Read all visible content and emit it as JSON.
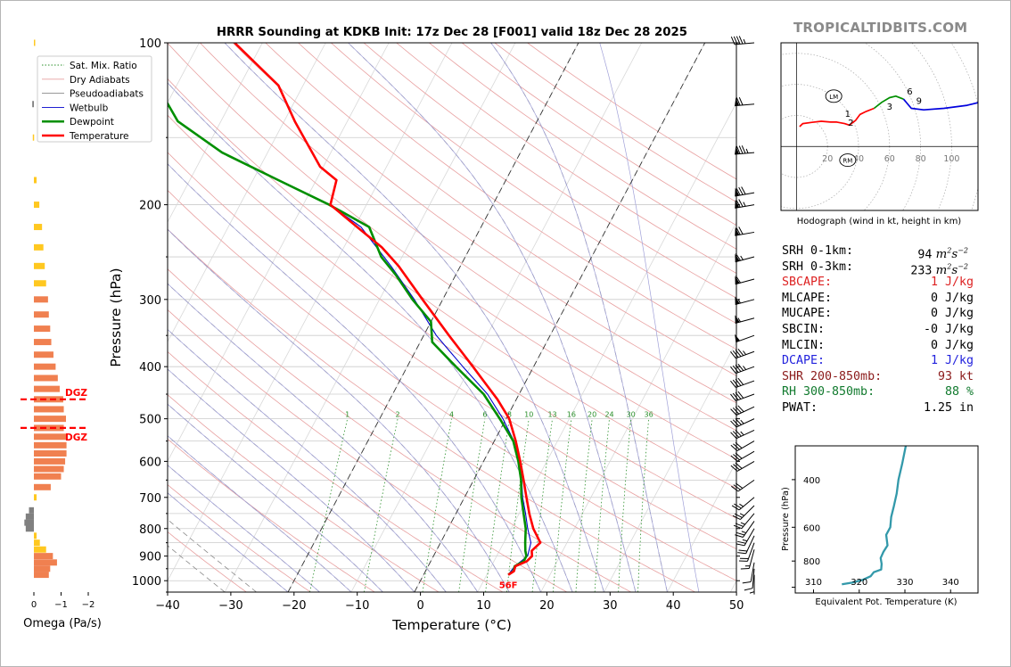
{
  "title": "HRRR Sounding at KDKB Init: 17z Dec 28 [F001] valid 18z Dec 28 2025",
  "brand": "TROPICALTIDBITS.COM",
  "colors": {
    "temperature": "#ff0000",
    "dewpoint": "#008f00",
    "wetbulb": "#0000cc",
    "dry_adiabat": "#e8a0a0",
    "moist_adiabat": "#8a8a8a",
    "mixing_ratio": "#2a8f2a",
    "isotherm": "#a0a0d8",
    "theta_e": "#3399aa",
    "omega_pos": "#f08050",
    "omega_neg": "#808080",
    "omega_weak": "#ffc820",
    "dgz": "#ff0000",
    "brand": "#8a8a8a"
  },
  "chart_data": [
    {
      "id": "skewt",
      "type": "line",
      "title": "HRRR Sounding at KDKB Init: 17z Dec 28 [F001] valid 18z Dec 28 2025",
      "xlabel": "Temperature (°C)",
      "ylabel": "Pressure (hPa)",
      "xlim": [
        -40,
        50
      ],
      "ylim": [
        1050,
        100
      ],
      "y_scale": "log",
      "skew": "skew-T log-P diagram",
      "x_ticks": [
        "−40",
        "−30",
        "−20",
        "−10",
        "0",
        "10",
        "20",
        "30",
        "40",
        "50"
      ],
      "y_ticks": [
        "100",
        "200",
        "300",
        "400",
        "500",
        "600",
        "700",
        "800",
        "900",
        "1000"
      ],
      "legend": {
        "position": "top-left",
        "entries": [
          "Sat. Mix. Ratio",
          "Dry Adiabats",
          "Pseudoadiabats",
          "Wetbulb",
          "Dewpoint",
          "Temperature"
        ]
      },
      "mixing_ratio_labels": [
        "1",
        "2",
        "4",
        "6",
        "8",
        "10",
        "13",
        "16",
        "20",
        "24",
        "30",
        "36"
      ],
      "surface_label": "56F",
      "series": [
        {
          "name": "Temperature",
          "points": [
            [
              975,
              13.4
            ],
            [
              960,
              14.0
            ],
            [
              940,
              13.8
            ],
            [
              920,
              15.2
            ],
            [
              900,
              15.6
            ],
            [
              880,
              15.1
            ],
            [
              850,
              15.8
            ],
            [
              800,
              13.5
            ],
            [
              750,
              11.6
            ],
            [
              700,
              9.8
            ],
            [
              650,
              7.9
            ],
            [
              600,
              5.8
            ],
            [
              550,
              3.4
            ],
            [
              500,
              0.5
            ],
            [
              460,
              -3.0
            ],
            [
              430,
              -6.2
            ],
            [
              400,
              -9.6
            ],
            [
              350,
              -16.0
            ],
            [
              300,
              -23.2
            ],
            [
              260,
              -29.8
            ],
            [
              240,
              -34.0
            ],
            [
              220,
              -39.6
            ],
            [
              200,
              -45.7
            ],
            [
              180,
              -46.8
            ],
            [
              170,
              -50.5
            ],
            [
              140,
              -58.3
            ],
            [
              120,
              -63.9
            ],
            [
              100,
              -74.4
            ]
          ]
        },
        {
          "name": "Dewpoint",
          "points": [
            [
              975,
              13.4
            ],
            [
              960,
              13.9
            ],
            [
              940,
              13.7
            ],
            [
              920,
              14.7
            ],
            [
              900,
              14.7
            ],
            [
              880,
              14.1
            ],
            [
              850,
              13.4
            ],
            [
              800,
              12.3
            ],
            [
              750,
              10.7
            ],
            [
              700,
              9.0
            ],
            [
              650,
              7.5
            ],
            [
              600,
              5.5
            ],
            [
              550,
              3.0
            ],
            [
              500,
              -1.0
            ],
            [
              450,
              -5.6
            ],
            [
              400,
              -12.3
            ],
            [
              360,
              -18.1
            ],
            [
              330,
              -20.0
            ],
            [
              300,
              -24.8
            ],
            [
              270,
              -29.5
            ],
            [
              250,
              -33.3
            ],
            [
              220,
              -37.7
            ],
            [
              200,
              -45.9
            ],
            [
              180,
              -56.0
            ],
            [
              160,
              -67.2
            ],
            [
              140,
              -76.8
            ],
            [
              120,
              -83.1
            ],
            [
              100,
              -86.7
            ]
          ]
        },
        {
          "name": "Wetbulb",
          "points": [
            [
              975,
              13.4
            ],
            [
              940,
              13.7
            ],
            [
              900,
              14.9
            ],
            [
              850,
              14.3
            ],
            [
              800,
              12.6
            ],
            [
              750,
              11.0
            ],
            [
              700,
              9.2
            ],
            [
              650,
              7.6
            ],
            [
              600,
              5.6
            ],
            [
              550,
              3.1
            ],
            [
              500,
              -0.5
            ],
            [
              450,
              -5.0
            ],
            [
              400,
              -11.2
            ],
            [
              350,
              -18.0
            ],
            [
              300,
              -24.5
            ],
            [
              260,
              -31.0
            ],
            [
              220,
              -39.0
            ],
            [
              200,
              -45.8
            ]
          ]
        }
      ]
    },
    {
      "id": "omega",
      "type": "bar",
      "xlabel": "Omega (Pa/s)",
      "x_ticks": [
        "0",
        "−1",
        "−2"
      ],
      "xlim": [
        0,
        -2
      ],
      "dgz_label": "DGZ",
      "dgz_levels": [
        460,
        520
      ],
      "bars": [
        [
          975,
          -0.55
        ],
        [
          950,
          -0.6
        ],
        [
          925,
          -0.85
        ],
        [
          900,
          -0.7
        ],
        [
          875,
          -0.45
        ],
        [
          850,
          -0.22
        ],
        [
          825,
          -0.1
        ],
        [
          800,
          0.3
        ],
        [
          780,
          0.35
        ],
        [
          760,
          0.3
        ],
        [
          740,
          0.18
        ],
        [
          700,
          -0.1
        ],
        [
          670,
          -0.62
        ],
        [
          640,
          -1.0
        ],
        [
          620,
          -1.1
        ],
        [
          600,
          -1.15
        ],
        [
          580,
          -1.2
        ],
        [
          560,
          -1.2
        ],
        [
          540,
          -1.18
        ],
        [
          520,
          -1.1
        ],
        [
          500,
          -1.18
        ],
        [
          480,
          -1.1
        ],
        [
          460,
          -1.08
        ],
        [
          440,
          -0.95
        ],
        [
          420,
          -0.88
        ],
        [
          400,
          -0.8
        ],
        [
          380,
          -0.72
        ],
        [
          360,
          -0.64
        ],
        [
          340,
          -0.6
        ],
        [
          320,
          -0.55
        ],
        [
          300,
          -0.52
        ],
        [
          280,
          -0.45
        ],
        [
          260,
          -0.4
        ],
        [
          240,
          -0.35
        ],
        [
          220,
          -0.3
        ],
        [
          200,
          -0.2
        ],
        [
          180,
          -0.1
        ],
        [
          150,
          0.04
        ],
        [
          130,
          0.06
        ],
        [
          100,
          -0.02
        ]
      ]
    },
    {
      "id": "hodograph",
      "type": "line",
      "title": "Hodograph (wind in kt, height in km)",
      "x_ticks": [
        "20",
        "40",
        "60",
        "80",
        "100"
      ],
      "xlim": [
        -10,
        117
      ],
      "ylim": [
        -42,
        68
      ],
      "annotations": [
        "LM",
        "RM",
        "1",
        "2",
        "3",
        "6",
        "9"
      ],
      "storm_motion": {
        "LM": [
          24,
          33
        ],
        "RM": [
          33,
          -9
        ]
      },
      "series": [
        {
          "name": "0-3 km",
          "color": "#ff0000",
          "points": [
            [
              2,
              13
            ],
            [
              4,
              15
            ],
            [
              10,
              15.8
            ],
            [
              16,
              16.5
            ],
            [
              22,
              16
            ],
            [
              26,
              16
            ],
            [
              31,
              15
            ],
            [
              34,
              14
            ],
            [
              38,
              17
            ],
            [
              41,
              21
            ],
            [
              45,
              23
            ],
            [
              50,
              25
            ]
          ]
        },
        {
          "name": "3-6 km",
          "color": "#008f00",
          "points": [
            [
              50,
              25
            ],
            [
              55,
              29
            ],
            [
              60,
              32
            ],
            [
              64,
              33
            ],
            [
              69,
              31
            ]
          ]
        },
        {
          "name": "6-12 km",
          "color": "#0000dd",
          "points": [
            [
              69,
              31
            ],
            [
              74,
              25
            ],
            [
              82,
              24
            ],
            [
              95,
              25
            ],
            [
              110,
              27
            ],
            [
              122,
              30
            ]
          ]
        }
      ]
    },
    {
      "id": "theta_e",
      "type": "line",
      "xlabel": "Equivalent Pot. Temperature (K)",
      "ylabel": "Pressure (hPa)",
      "xlim": [
        306,
        346
      ],
      "ylim": [
        1050,
        300
      ],
      "x_ticks": [
        "310",
        "320",
        "330",
        "340"
      ],
      "y_ticks": [
        "400",
        "600",
        "800"
      ],
      "series": [
        {
          "name": "Equivalent Pot. Temperature",
          "points": [
            [
              975,
              316.2
            ],
            [
              960,
              318.6
            ],
            [
              940,
              320.7
            ],
            [
              910,
              322.5
            ],
            [
              880,
              323.2
            ],
            [
              860,
              324.8
            ],
            [
              820,
              324.9
            ],
            [
              780,
              324.7
            ],
            [
              740,
              325.3
            ],
            [
              700,
              326.2
            ],
            [
              640,
              325.9
            ],
            [
              600,
              326.8
            ],
            [
              550,
              327.0
            ],
            [
              500,
              327.6
            ],
            [
              450,
              328.2
            ],
            [
              400,
              328.6
            ],
            [
              350,
              329.4
            ],
            [
              300,
              330.2
            ]
          ]
        }
      ]
    }
  ],
  "wind_barbs": [
    {
      "p": 100,
      "speed": 45,
      "dir": 265
    },
    {
      "p": 130,
      "speed": 70,
      "dir": 265
    },
    {
      "p": 160,
      "speed": 85,
      "dir": 265
    },
    {
      "p": 190,
      "speed": 80,
      "dir": 260
    },
    {
      "p": 200,
      "speed": 75,
      "dir": 260
    },
    {
      "p": 225,
      "speed": 70,
      "dir": 260
    },
    {
      "p": 250,
      "speed": 65,
      "dir": 255
    },
    {
      "p": 275,
      "speed": 60,
      "dir": 255
    },
    {
      "p": 300,
      "speed": 55,
      "dir": 255
    },
    {
      "p": 325,
      "speed": 55,
      "dir": 255
    },
    {
      "p": 350,
      "speed": 50,
      "dir": 250
    },
    {
      "p": 375,
      "speed": 45,
      "dir": 250
    },
    {
      "p": 400,
      "speed": 45,
      "dir": 250
    },
    {
      "p": 425,
      "speed": 40,
      "dir": 250
    },
    {
      "p": 450,
      "speed": 40,
      "dir": 250
    },
    {
      "p": 475,
      "speed": 40,
      "dir": 245
    },
    {
      "p": 500,
      "speed": 35,
      "dir": 245
    },
    {
      "p": 525,
      "speed": 35,
      "dir": 245
    },
    {
      "p": 550,
      "speed": 30,
      "dir": 240
    },
    {
      "p": 575,
      "speed": 30,
      "dir": 240
    },
    {
      "p": 600,
      "speed": 30,
      "dir": 240
    },
    {
      "p": 650,
      "speed": 30,
      "dir": 235
    },
    {
      "p": 700,
      "speed": 25,
      "dir": 230
    },
    {
      "p": 725,
      "speed": 25,
      "dir": 225
    },
    {
      "p": 750,
      "speed": 25,
      "dir": 220
    },
    {
      "p": 775,
      "speed": 25,
      "dir": 215
    },
    {
      "p": 800,
      "speed": 25,
      "dir": 210
    },
    {
      "p": 825,
      "speed": 20,
      "dir": 205
    },
    {
      "p": 850,
      "speed": 20,
      "dir": 200
    },
    {
      "p": 875,
      "speed": 15,
      "dir": 195
    },
    {
      "p": 925,
      "speed": 10,
      "dir": 190
    },
    {
      "p": 950,
      "speed": 10,
      "dir": 185
    },
    {
      "p": 975,
      "speed": 5,
      "dir": 180
    }
  ],
  "stats": [
    {
      "label": "SRH 0-1km:",
      "value": "94",
      "unit": "m2s-2",
      "color": "#000000"
    },
    {
      "label": "SRH 0-3km:",
      "value": "233",
      "unit": "m2s-2",
      "color": "#000000"
    },
    {
      "label": "SBCAPE:",
      "value": "1 J/kg",
      "color": "#dd2222"
    },
    {
      "label": "MLCAPE:",
      "value": "0 J/kg",
      "color": "#000000"
    },
    {
      "label": "MUCAPE:",
      "value": "0 J/kg",
      "color": "#000000"
    },
    {
      "label": "SBCIN:",
      "value": "-0 J/kg",
      "color": "#000000"
    },
    {
      "label": "MLCIN:",
      "value": "0 J/kg",
      "color": "#000000"
    },
    {
      "label": "DCAPE:",
      "value": "1 J/kg",
      "color": "#2222dd"
    },
    {
      "label": "SHR 200-850mb:",
      "value": "93 kt",
      "color": "#8b1a1a"
    },
    {
      "label": "RH 300-850mb:",
      "value": "88 %",
      "color": "#117a2e"
    },
    {
      "label": "PWAT:",
      "value": "1.25 in",
      "color": "#000000"
    }
  ]
}
